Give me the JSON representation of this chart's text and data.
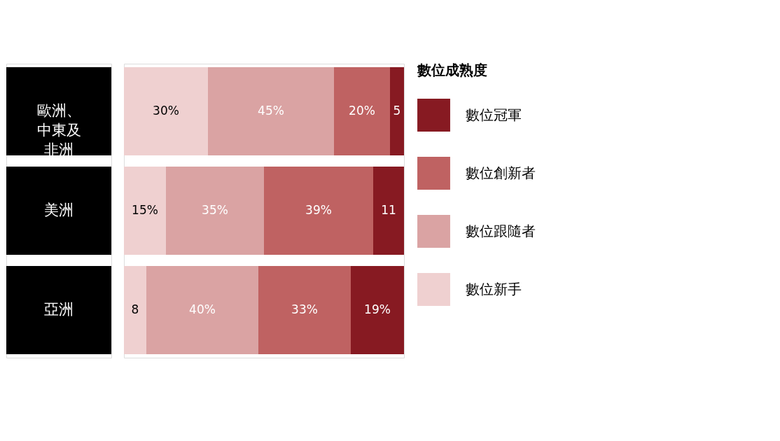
{
  "chart_data": {
    "type": "bar",
    "orientation": "horizontal",
    "stacked": true,
    "legend_title": "數位成熟度",
    "legend": "right",
    "tick_labels": "y",
    "categories": [
      "歐洲、中東及非洲",
      "美洲",
      "亞洲"
    ],
    "series": [
      {
        "name": "數位新手",
        "color": "#efd0d0",
        "values": [
          30,
          15,
          8
        ],
        "value_labels": [
          "30%",
          "15%",
          "8"
        ]
      },
      {
        "name": "數位跟隨者",
        "color": "#daa3a3",
        "values": [
          45,
          35,
          40
        ],
        "value_labels": [
          "45%",
          "35%",
          "40%"
        ]
      },
      {
        "name": "數位創新者",
        "color": "#bf6262",
        "values": [
          20,
          39,
          33
        ],
        "value_labels": [
          "20%",
          "39%",
          "33%"
        ]
      },
      {
        "name": "數位冠軍",
        "color": "#871a22",
        "values": [
          5,
          11,
          19
        ],
        "value_labels": [
          "5",
          "11",
          "19%"
        ]
      }
    ]
  }
}
